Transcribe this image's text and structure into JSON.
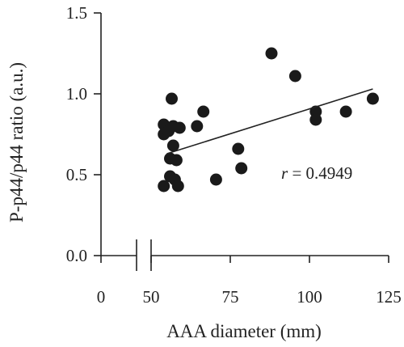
{
  "chart_data": {
    "type": "scatter",
    "title": "",
    "xlabel": "AAA diameter (mm)",
    "ylabel": "P-p44/p44 ratio (a.u.)",
    "x_ticks": [
      "0",
      "50",
      "75",
      "100",
      "125"
    ],
    "y_ticks": [
      "0.0",
      "0.5",
      "1.0",
      "1.5"
    ],
    "xlim": [
      50,
      125
    ],
    "ylim": [
      0,
      1.5
    ],
    "axis_break": "between 0 and 50",
    "grid": false,
    "colors": {
      "points": "#1a1a1a",
      "axes": "#222222",
      "fit_line": "#222222"
    },
    "series": [
      {
        "points": [
          [
            54,
            0.81
          ],
          [
            54,
            0.75
          ],
          [
            54,
            0.43
          ],
          [
            55.5,
            0.77
          ],
          [
            56,
            0.6
          ],
          [
            56,
            0.49
          ],
          [
            56.5,
            0.97
          ],
          [
            57,
            0.68
          ],
          [
            57,
            0.8
          ],
          [
            57.5,
            0.47
          ],
          [
            58,
            0.59
          ],
          [
            58.5,
            0.43
          ],
          [
            59,
            0.79
          ],
          [
            64.5,
            0.8
          ],
          [
            66.5,
            0.89
          ],
          [
            70.5,
            0.47
          ],
          [
            77.5,
            0.66
          ],
          [
            78.5,
            0.54
          ],
          [
            88,
            1.25
          ],
          [
            95.5,
            1.11
          ],
          [
            102,
            0.89
          ],
          [
            102,
            0.84
          ],
          [
            111.5,
            0.89
          ],
          [
            120,
            0.97
          ]
        ]
      }
    ],
    "fit_line": {
      "x": [
        55,
        120
      ],
      "y": [
        0.63,
        1.03
      ]
    },
    "annotation": {
      "r_symbol": "r",
      "r_rest": " = 0.4949"
    }
  }
}
